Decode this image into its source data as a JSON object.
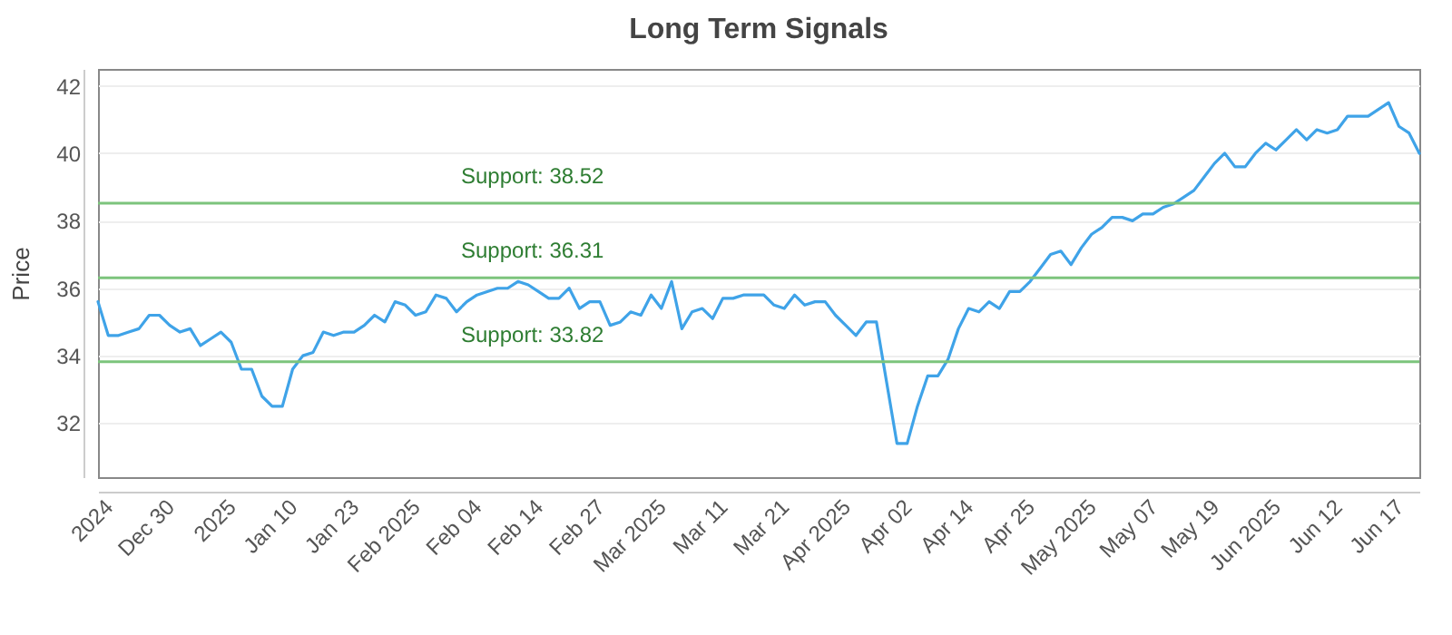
{
  "chart_data": {
    "type": "line",
    "title": "Long Term Signals",
    "ylabel": "Price",
    "categories": [
      null,
      "2024",
      null,
      null,
      null,
      null,
      null,
      "Dec 30",
      null,
      null,
      null,
      null,
      null,
      "2025",
      null,
      null,
      null,
      null,
      null,
      "Jan 10",
      null,
      null,
      null,
      null,
      null,
      "Jan 23",
      null,
      null,
      null,
      null,
      null,
      "Feb 2025",
      null,
      null,
      null,
      null,
      null,
      "Feb 04",
      null,
      null,
      null,
      null,
      null,
      "Feb 14",
      null,
      null,
      null,
      null,
      null,
      "Feb 27",
      null,
      null,
      null,
      null,
      null,
      "Mar 2025",
      null,
      null,
      null,
      null,
      null,
      "Mar 11",
      null,
      null,
      null,
      null,
      null,
      "Mar 21",
      null,
      null,
      null,
      null,
      null,
      "Apr 2025",
      null,
      null,
      null,
      null,
      null,
      "Apr 02",
      null,
      null,
      null,
      null,
      null,
      "Apr 14",
      null,
      null,
      null,
      null,
      null,
      "Apr 25",
      null,
      null,
      null,
      null,
      null,
      "May 2025",
      null,
      null,
      null,
      null,
      null,
      "May 07",
      null,
      null,
      null,
      null,
      null,
      "May 19",
      null,
      null,
      null,
      null,
      null,
      "Jun 2025",
      null,
      null,
      null,
      null,
      null,
      "Jun 12",
      null,
      null,
      null,
      null,
      null,
      "Jun 17",
      null,
      null
    ],
    "series": [
      {
        "color": "#3fa3e8",
        "values": [
          35.6,
          34.6,
          34.6,
          34.7,
          34.8,
          35.2,
          35.2,
          34.9,
          34.7,
          34.8,
          34.3,
          34.5,
          34.7,
          34.4,
          33.6,
          33.6,
          32.8,
          32.5,
          32.5,
          33.6,
          34.0,
          34.1,
          34.7,
          34.6,
          34.7,
          34.7,
          34.9,
          35.2,
          35.0,
          35.6,
          35.5,
          35.2,
          35.3,
          35.8,
          35.7,
          35.3,
          35.6,
          35.8,
          35.9,
          36.0,
          36.0,
          36.2,
          36.1,
          35.9,
          35.7,
          35.7,
          36.0,
          35.4,
          35.6,
          35.6,
          34.9,
          35.0,
          35.3,
          35.2,
          35.8,
          35.4,
          36.2,
          34.8,
          35.3,
          35.4,
          35.1,
          35.7,
          35.7,
          35.8,
          35.8,
          35.8,
          35.5,
          35.4,
          35.8,
          35.5,
          35.6,
          35.6,
          35.2,
          34.9,
          34.6,
          35.0,
          35.0,
          33.2,
          31.4,
          31.4,
          32.5,
          33.4,
          33.4,
          33.9,
          34.8,
          35.4,
          35.3,
          35.6,
          35.4,
          35.9,
          35.9,
          36.2,
          36.6,
          37.0,
          37.1,
          36.7,
          37.2,
          37.6,
          37.8,
          38.1,
          38.1,
          38.0,
          38.2,
          38.2,
          38.4,
          38.5,
          38.7,
          38.9,
          39.3,
          39.7,
          40.0,
          39.6,
          39.6,
          40.0,
          40.3,
          40.1,
          40.4,
          40.7,
          40.4,
          40.7,
          40.6,
          40.7,
          41.1,
          41.1,
          41.1,
          41.3,
          41.5,
          40.8,
          40.6,
          40.0
        ]
      }
    ],
    "ylim": [
      30.4,
      42.5
    ],
    "yticks": [
      32,
      34,
      36,
      38,
      40,
      42
    ],
    "grid": "y",
    "marker": "none",
    "line_style": "solid",
    "ref_lines": [
      {
        "axis": "y",
        "value": 38.52,
        "label": "Support: 38.52",
        "color": "#7cc47c"
      },
      {
        "axis": "y",
        "value": 36.31,
        "label": "Support: 36.31",
        "color": "#7cc47c"
      },
      {
        "axis": "y",
        "value": 33.82,
        "label": "Support: 33.82",
        "color": "#7cc47c"
      }
    ]
  }
}
